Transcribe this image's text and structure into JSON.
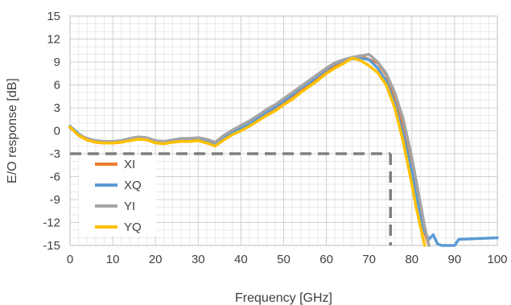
{
  "chart_data": {
    "type": "line",
    "title": "",
    "xlabel": "Frequency [GHz]",
    "ylabel": "E/O response [dB]",
    "xlim": [
      0,
      100
    ],
    "ylim": [
      -15,
      15
    ],
    "x_ticks": [
      0,
      10,
      20,
      30,
      40,
      50,
      60,
      70,
      80,
      90,
      100
    ],
    "y_ticks": [
      15,
      12,
      9,
      6,
      3,
      0,
      -3,
      -6,
      -9,
      -12,
      -15
    ],
    "grid": true,
    "legend_position": "bottom-left",
    "reference_level": -3,
    "reference_frequency": 75,
    "series": [
      {
        "name": "XI",
        "color": "#ED7D31",
        "x": [
          0,
          2,
          4,
          6,
          8,
          10,
          12,
          14,
          16,
          18,
          20,
          22,
          24,
          26,
          28,
          30,
          32,
          34,
          36,
          38,
          40,
          42,
          44,
          46,
          48,
          50,
          52,
          54,
          56,
          58,
          60,
          62,
          64,
          66,
          68,
          70,
          72,
          74,
          76,
          78,
          80,
          81,
          82,
          83,
          84
        ],
        "y": [
          0.5,
          -0.6,
          -1.2,
          -1.5,
          -1.6,
          -1.6,
          -1.5,
          -1.2,
          -0.9,
          -1.1,
          -1.5,
          -1.6,
          -1.4,
          -1.3,
          -1.3,
          -1.2,
          -1.5,
          -1.9,
          -1.0,
          -0.3,
          0.3,
          1.0,
          1.6,
          2.4,
          3.0,
          3.8,
          4.5,
          5.4,
          6.2,
          7.0,
          7.9,
          8.6,
          9.1,
          9.6,
          9.8,
          9.3,
          8.9,
          7.3,
          4.5,
          0.2,
          -4.8,
          -7.8,
          -10.8,
          -13.3,
          -15.0
        ]
      },
      {
        "name": "XQ",
        "color": "#5B9BD5",
        "x": [
          0,
          2,
          4,
          6,
          8,
          10,
          12,
          14,
          16,
          18,
          20,
          22,
          24,
          26,
          28,
          30,
          32,
          34,
          36,
          38,
          40,
          42,
          44,
          46,
          48,
          50,
          52,
          54,
          56,
          58,
          60,
          62,
          64,
          66,
          68,
          70,
          72,
          74,
          76,
          78,
          80,
          81,
          82,
          83,
          84,
          85,
          86,
          87,
          90,
          91,
          100
        ],
        "y": [
          0.6,
          -0.4,
          -1.1,
          -1.4,
          -1.5,
          -1.5,
          -1.4,
          -1.1,
          -0.9,
          -1.0,
          -1.4,
          -1.5,
          -1.3,
          -1.2,
          -1.2,
          -1.1,
          -1.3,
          -1.7,
          -0.9,
          -0.2,
          0.4,
          1.0,
          1.7,
          2.5,
          3.1,
          3.9,
          4.7,
          5.6,
          6.3,
          7.2,
          8.0,
          8.8,
          9.2,
          9.4,
          9.5,
          9.3,
          8.2,
          6.5,
          3.5,
          -0.5,
          -5.5,
          -8.5,
          -11.5,
          -13.2,
          -14.2,
          -13.6,
          -14.8,
          -15.0,
          -15.0,
          -14.2,
          -14.0
        ]
      },
      {
        "name": "YI",
        "color": "#A5A5A5",
        "x": [
          0,
          2,
          4,
          6,
          8,
          10,
          12,
          14,
          16,
          18,
          20,
          22,
          24,
          26,
          28,
          30,
          32,
          34,
          36,
          38,
          40,
          42,
          44,
          46,
          48,
          50,
          52,
          54,
          56,
          58,
          60,
          62,
          64,
          66,
          68,
          70,
          72,
          74,
          76,
          78,
          80,
          81,
          82,
          83,
          84
        ],
        "y": [
          0.4,
          -0.5,
          -1.0,
          -1.3,
          -1.4,
          -1.4,
          -1.3,
          -1.0,
          -0.8,
          -0.9,
          -1.3,
          -1.4,
          -1.2,
          -1.0,
          -1.0,
          -0.9,
          -1.1,
          -1.5,
          -0.6,
          0.1,
          0.7,
          1.3,
          2.0,
          2.8,
          3.4,
          4.2,
          5.0,
          5.8,
          6.6,
          7.4,
          8.2,
          8.9,
          9.3,
          9.6,
          9.8,
          10.0,
          9.0,
          7.5,
          5.0,
          1.5,
          -3.5,
          -6.5,
          -9.5,
          -12.5,
          -15.0
        ]
      },
      {
        "name": "YQ",
        "color": "#FFC000",
        "x": [
          0,
          2,
          4,
          6,
          8,
          10,
          12,
          14,
          16,
          18,
          20,
          22,
          24,
          26,
          28,
          30,
          32,
          34,
          36,
          38,
          40,
          42,
          44,
          46,
          48,
          50,
          52,
          54,
          56,
          58,
          60,
          62,
          64,
          66,
          68,
          70,
          72,
          74,
          76,
          78,
          80,
          81,
          82,
          83
        ],
        "y": [
          0.5,
          -0.6,
          -1.2,
          -1.5,
          -1.6,
          -1.6,
          -1.5,
          -1.3,
          -1.1,
          -1.2,
          -1.6,
          -1.7,
          -1.5,
          -1.4,
          -1.4,
          -1.3,
          -1.6,
          -2.0,
          -1.2,
          -0.5,
          0.0,
          0.6,
          1.3,
          2.0,
          2.6,
          3.4,
          4.1,
          5.0,
          5.8,
          6.6,
          7.5,
          8.2,
          8.8,
          9.5,
          9.2,
          8.5,
          7.6,
          6.0,
          3.0,
          -1.5,
          -7.0,
          -10.0,
          -12.5,
          -15.0
        ]
      }
    ]
  }
}
